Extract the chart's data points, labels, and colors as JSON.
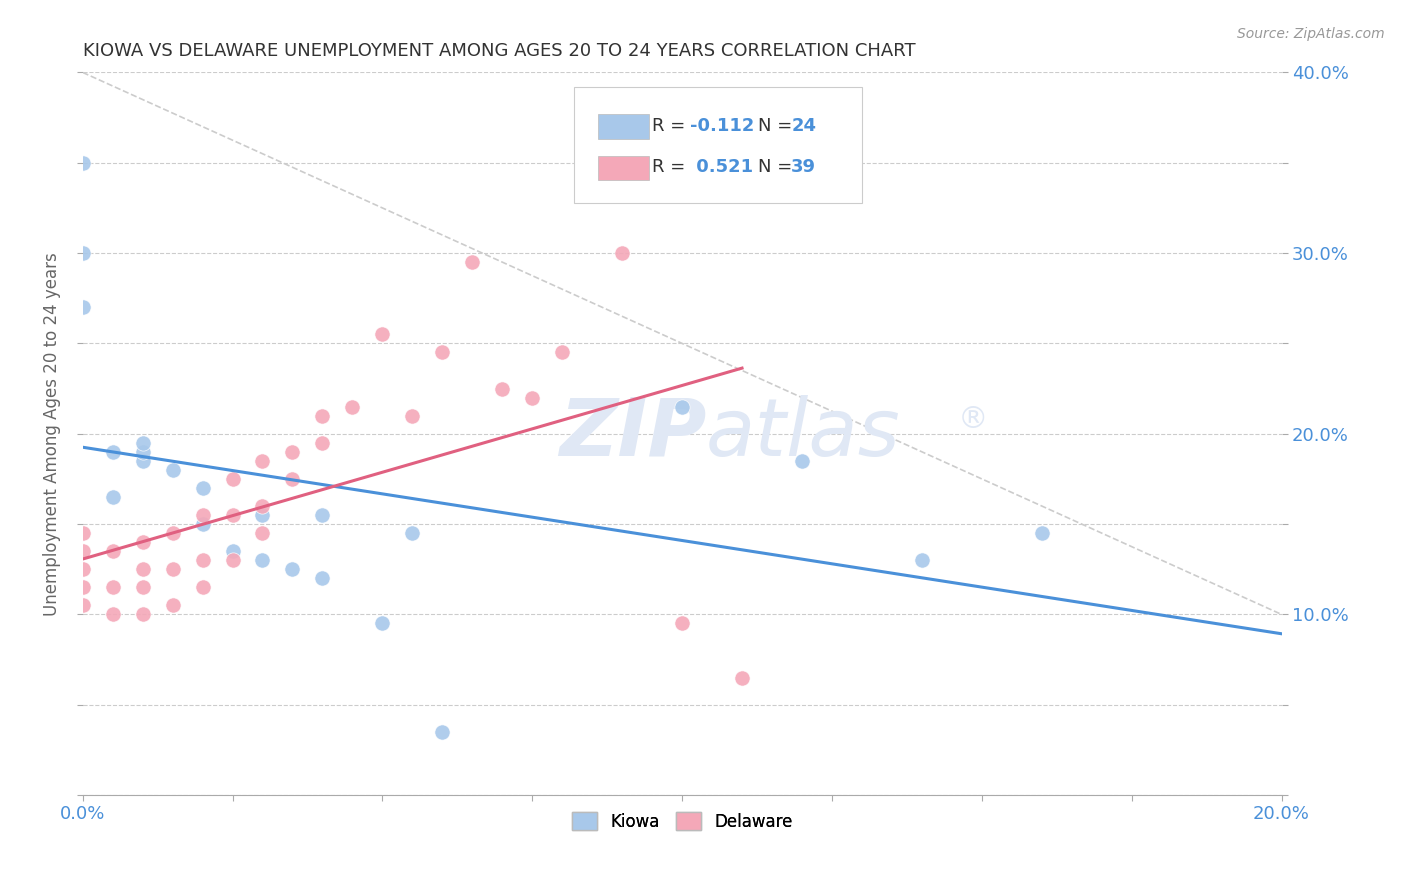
{
  "title": "KIOWA VS DELAWARE UNEMPLOYMENT AMONG AGES 20 TO 24 YEARS CORRELATION CHART",
  "source_text": "Source: ZipAtlas.com",
  "ylabel": "Unemployment Among Ages 20 to 24 years",
  "xlim": [
    0.0,
    0.2
  ],
  "ylim": [
    0.0,
    0.4
  ],
  "kiowa_color": "#A8C8EA",
  "delaware_color": "#F4A8B8",
  "kiowa_line_color": "#4A90D9",
  "delaware_line_color": "#E06080",
  "background_color": "#FFFFFF",
  "grid_color": "#CCCCCC",
  "watermark_color": "#E0E8F5",
  "kiowa_x": [
    0.0,
    0.0,
    0.0,
    0.005,
    0.005,
    0.01,
    0.01,
    0.01,
    0.015,
    0.02,
    0.02,
    0.025,
    0.03,
    0.03,
    0.035,
    0.04,
    0.04,
    0.05,
    0.055,
    0.06,
    0.1,
    0.12,
    0.14,
    0.16
  ],
  "kiowa_y": [
    0.35,
    0.3,
    0.27,
    0.19,
    0.165,
    0.185,
    0.19,
    0.195,
    0.18,
    0.17,
    0.15,
    0.135,
    0.155,
    0.13,
    0.125,
    0.155,
    0.12,
    0.095,
    0.145,
    0.035,
    0.215,
    0.185,
    0.13,
    0.145
  ],
  "delaware_x": [
    0.0,
    0.0,
    0.0,
    0.0,
    0.0,
    0.005,
    0.005,
    0.005,
    0.01,
    0.01,
    0.01,
    0.01,
    0.015,
    0.015,
    0.015,
    0.02,
    0.02,
    0.02,
    0.025,
    0.025,
    0.025,
    0.03,
    0.03,
    0.03,
    0.035,
    0.035,
    0.04,
    0.04,
    0.045,
    0.05,
    0.055,
    0.06,
    0.065,
    0.07,
    0.075,
    0.08,
    0.09,
    0.1,
    0.11
  ],
  "delaware_y": [
    0.105,
    0.115,
    0.125,
    0.135,
    0.145,
    0.1,
    0.115,
    0.135,
    0.1,
    0.115,
    0.125,
    0.14,
    0.105,
    0.125,
    0.145,
    0.115,
    0.13,
    0.155,
    0.13,
    0.155,
    0.175,
    0.145,
    0.16,
    0.185,
    0.175,
    0.19,
    0.195,
    0.21,
    0.215,
    0.255,
    0.21,
    0.245,
    0.295,
    0.225,
    0.22,
    0.245,
    0.3,
    0.095,
    0.065
  ]
}
